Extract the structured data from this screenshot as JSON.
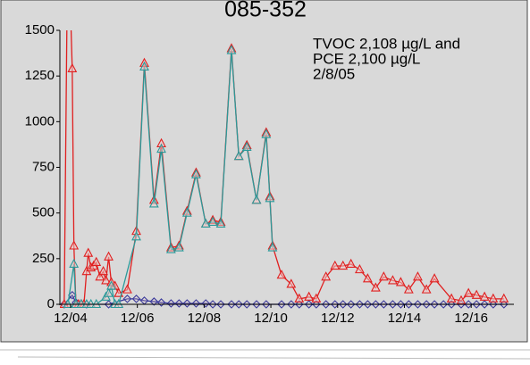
{
  "chart_data": {
    "type": "line",
    "title": "085-352",
    "annotation": [
      "TVOC 2,108 µg/L and",
      "PCE 2,100 µg/L",
      "2/8/05"
    ],
    "xlim": [
      2004.6,
      2018.2
    ],
    "xticks": [
      {
        "value": 2004.92,
        "label": "12/04"
      },
      {
        "value": 2006.92,
        "label": "12/06"
      },
      {
        "value": 2008.92,
        "label": "12/08"
      },
      {
        "value": 2010.92,
        "label": "12/10"
      },
      {
        "value": 2012.92,
        "label": "12/12"
      },
      {
        "value": 2014.92,
        "label": "12/14"
      },
      {
        "value": 2016.92,
        "label": "12/16"
      }
    ],
    "ylim": [
      0,
      1500
    ],
    "yticks": [
      0,
      250,
      500,
      750,
      1000,
      1250,
      1500
    ],
    "series": [
      {
        "color": "#3b3b9c",
        "marker": "diamond",
        "x": [
          2004.73,
          2004.97,
          2005.08,
          2005.4,
          2006.06,
          2006.62,
          2006.89,
          2007.13,
          2007.42,
          2007.64,
          2007.93,
          2008.17,
          2008.41,
          2008.68,
          2008.97,
          2009.18,
          2009.42,
          2009.74,
          2009.96,
          2010.2,
          2010.49,
          2010.78,
          2011.24,
          2011.53,
          2011.77,
          2012.06,
          2012.28,
          2012.57,
          2012.84,
          2013.08,
          2013.32,
          2013.58,
          2013.82,
          2014.06,
          2014.3,
          2014.57,
          2014.81,
          2015.05,
          2015.32,
          2015.58,
          2015.82,
          2016.09,
          2016.33,
          2016.62,
          2016.84,
          2017.08,
          2017.32,
          2017.58,
          2017.9
        ],
        "values": [
          0,
          50,
          10,
          0,
          0,
          30,
          30,
          20,
          15,
          10,
          5,
          5,
          5,
          5,
          5,
          0,
          0,
          0,
          0,
          0,
          0,
          0,
          0,
          0,
          0,
          0,
          0,
          0,
          0,
          0,
          0,
          0,
          0,
          0,
          0,
          0,
          0,
          0,
          0,
          0,
          0,
          0,
          0,
          0,
          0,
          0,
          0,
          0,
          0
        ]
      },
      {
        "color": "#e01f1f",
        "marker": "triangle",
        "x": [
          2004.73,
          2004.84,
          2004.97,
          2005.02,
          2005.08,
          2005.16,
          2005.24,
          2005.32,
          2005.4,
          2005.45,
          2005.53,
          2005.61,
          2005.69,
          2005.8,
          2005.9,
          2005.98,
          2006.06,
          2006.14,
          2006.25,
          2006.36,
          2006.62,
          2006.89,
          2007.13,
          2007.42,
          2007.64,
          2007.93,
          2008.17,
          2008.41,
          2008.68,
          2008.97,
          2009.18,
          2009.42,
          2009.74,
          2009.96,
          2010.2,
          2010.49,
          2010.78,
          2010.89,
          2010.97,
          2011.24,
          2011.53,
          2011.77,
          2012.06,
          2012.28,
          2012.57,
          2012.84,
          2013.08,
          2013.32,
          2013.58,
          2013.82,
          2014.06,
          2014.3,
          2014.57,
          2014.81,
          2015.05,
          2015.32,
          2015.58,
          2015.82,
          2016.33,
          2016.62,
          2016.84,
          2017.08,
          2017.32,
          2017.58,
          2017.9
        ],
        "values": [
          0,
          2108,
          1290,
          320,
          0,
          0,
          0,
          0,
          180,
          280,
          200,
          210,
          230,
          150,
          180,
          130,
          260,
          120,
          100,
          60,
          80,
          400,
          1320,
          570,
          880,
          310,
          320,
          510,
          720,
          440,
          460,
          450,
          1400,
          810,
          870,
          570,
          940,
          590,
          320,
          160,
          110,
          30,
          40,
          30,
          150,
          210,
          210,
          220,
          190,
          140,
          90,
          150,
          130,
          120,
          80,
          150,
          80,
          140,
          30,
          20,
          60,
          50,
          40,
          30,
          30
        ]
      },
      {
        "color": "#2a9a9a",
        "marker": "triangle",
        "x": [
          2004.84,
          2005.02,
          2005.08,
          2005.24,
          2005.4,
          2005.53,
          2005.69,
          2005.98,
          2006.06,
          2006.14,
          2006.25,
          2006.36,
          2006.89,
          2007.13,
          2007.42,
          2007.64,
          2007.93,
          2008.17,
          2008.41,
          2008.68,
          2008.97,
          2009.18,
          2009.42,
          2009.74,
          2009.96,
          2010.2,
          2010.49,
          2010.78,
          2010.89,
          2010.97
        ],
        "values": [
          0,
          220,
          0,
          0,
          0,
          0,
          0,
          40,
          60,
          100,
          0,
          0,
          370,
          1300,
          550,
          850,
          300,
          310,
          500,
          710,
          440,
          450,
          440,
          1390,
          810,
          860,
          570,
          930,
          580,
          310
        ]
      }
    ]
  }
}
